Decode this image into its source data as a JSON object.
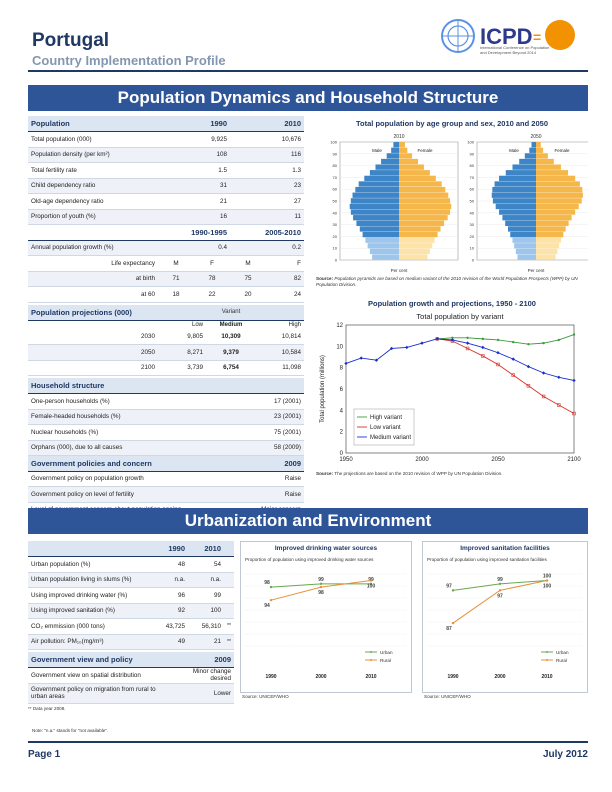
{
  "header": {
    "title": "Portugal",
    "subtitle": "Country Implementation Profile",
    "logo_text": "ICPD",
    "logo_eq": "=",
    "logo_desc": "International Conference on Population and Development Beyond 2014"
  },
  "banner1": "Population Dynamics and Household Structure",
  "banner2": "Urbanization and Environment",
  "population_table": {
    "header": [
      "Population",
      "1990",
      "2010"
    ],
    "rows": [
      [
        "Total population (000)",
        "9,925",
        "10,676"
      ],
      [
        "Population density (per km²)",
        "108",
        "116"
      ],
      [
        "Total fertility rate",
        "1.5",
        "1.3"
      ],
      [
        "Child dependency ratio",
        "31",
        "23"
      ],
      [
        "Old-age dependency ratio",
        "21",
        "27"
      ],
      [
        "Proportion of youth (%)",
        "16",
        "11"
      ]
    ],
    "period_header": [
      "1990-1995",
      "2005-2010"
    ],
    "growth": [
      "Annual population growth (%)",
      "0.4",
      "0.2"
    ],
    "life_header": [
      "Life expectancy",
      "M",
      "F",
      "M",
      "F"
    ],
    "at_birth": [
      "at birth",
      "71",
      "78",
      "75",
      "82"
    ],
    "at_60": [
      "at 60",
      "18",
      "22",
      "20",
      "24"
    ]
  },
  "projections_table": {
    "title": "Population projections (000)",
    "variant_label": "Variant",
    "cols": [
      "Low",
      "Medium",
      "High"
    ],
    "rows": [
      [
        "2030",
        "9,805",
        "10,309",
        "10,814"
      ],
      [
        "2050",
        "8,271",
        "9,379",
        "10,584"
      ],
      [
        "2100",
        "3,739",
        "6,754",
        "11,098"
      ]
    ]
  },
  "household_table": {
    "title": "Household structure",
    "rows": [
      [
        "One-person households (%)",
        "17 (2001)"
      ],
      [
        "Female-headed households (%)",
        "23 (2001)"
      ],
      [
        "Nuclear households (%)",
        "75 (2001)"
      ],
      [
        "Orphans (000), due to all causes",
        "58 (2009)"
      ]
    ]
  },
  "policy_table": {
    "title": "Government policies and concern",
    "year": "2009",
    "rows": [
      [
        "Government policy on population growth",
        "Raise"
      ],
      [
        "Government policy on level of fertility",
        "Raise"
      ],
      [
        "Level of government concern about population ageing",
        "Major concern"
      ]
    ]
  },
  "pyramid": {
    "title": "Total population by age group and sex, 2010 and 2050",
    "years": [
      "2010",
      "2050"
    ],
    "male": "Male",
    "female": "Female",
    "age_ticks": [
      "100",
      "90",
      "80",
      "70",
      "60",
      "50",
      "40",
      "30",
      "20",
      "10",
      "0"
    ],
    "xlabel": "Per cent",
    "source_label": "Source:",
    "source": "Population pyramids are based on medium variant of the 2010 revision of the World Population Prospects (WPP) by UN Population Division."
  },
  "chart_data": [
    {
      "type": "line",
      "title": "Population growth and projections, 1950 - 2100",
      "subtitle": "Total population by variant",
      "ylabel": "Total population (millions)",
      "xlabel": "",
      "ylim": [
        0,
        12
      ],
      "xlim": [
        1950,
        2100
      ],
      "x_ticks": [
        1950,
        2000,
        2050,
        2100
      ],
      "y_ticks": [
        0,
        2,
        4,
        6,
        8,
        10,
        12
      ],
      "series": [
        {
          "name": "High variant",
          "color": "#3a9b3a",
          "x": [
            2010,
            2020,
            2030,
            2040,
            2050,
            2060,
            2070,
            2080,
            2090,
            2100
          ],
          "values": [
            10.7,
            10.8,
            10.8,
            10.7,
            10.6,
            10.4,
            10.2,
            10.3,
            10.6,
            11.1
          ]
        },
        {
          "name": "Low variant",
          "color": "#d9312b",
          "x": [
            2010,
            2020,
            2030,
            2040,
            2050,
            2060,
            2070,
            2080,
            2090,
            2100
          ],
          "values": [
            10.7,
            10.5,
            9.8,
            9.1,
            8.3,
            7.3,
            6.3,
            5.3,
            4.5,
            3.7
          ]
        },
        {
          "name": "Medium variant",
          "color": "#1a2fc9",
          "x": [
            1950,
            1960,
            1970,
            1980,
            1990,
            2000,
            2010,
            2020,
            2030,
            2040,
            2050,
            2060,
            2070,
            2080,
            2090,
            2100
          ],
          "values": [
            8.4,
            8.9,
            8.7,
            9.8,
            9.9,
            10.3,
            10.7,
            10.6,
            10.3,
            9.9,
            9.4,
            8.8,
            8.1,
            7.5,
            7.1,
            6.8
          ]
        }
      ],
      "legend": "bottom-left",
      "source_label": "Source:",
      "source": "The projections are based on the 2010 revision of WPP by UN Population Division."
    },
    {
      "type": "line",
      "title": "Improved drinking water sources",
      "subtitle": "Proportion of population using improved drinking water sources",
      "x": [
        "1990",
        "2000",
        "2010"
      ],
      "series": [
        {
          "name": "Urban",
          "color": "#6aa84f",
          "values": [
            98,
            99,
            99
          ]
        },
        {
          "name": "Rural",
          "color": "#e69138",
          "values": [
            94,
            98,
            100
          ]
        }
      ],
      "source": "Source: UNICEF/WHO"
    },
    {
      "type": "line",
      "title": "Improved sanitation facilities",
      "subtitle": "Proportion of population using improved sanitation facilities",
      "x": [
        "1990",
        "2000",
        "2010"
      ],
      "series": [
        {
          "name": "Urban",
          "color": "#6aa84f",
          "values": [
            97,
            99,
            100
          ]
        },
        {
          "name": "Rural",
          "color": "#e69138",
          "values": [
            87,
            97,
            100
          ]
        }
      ],
      "source": "Source: UNICEF/WHO"
    }
  ],
  "urban_table": {
    "cols": [
      "1990",
      "2010"
    ],
    "rows": [
      [
        "Urban population (%)",
        "48",
        "54",
        ""
      ],
      [
        "Urban population living in slums (%)",
        "n.a.",
        "n.a.",
        ""
      ],
      [
        "Using improved drinking water (%)",
        "96",
        "99",
        ""
      ],
      [
        "Using improved sanitation (%)",
        "92",
        "100",
        ""
      ],
      [
        "CO₂ emmission (000 tons)",
        "43,725",
        "56,310",
        "**"
      ],
      [
        "Air pollution: PM₁₀(mg/m³)",
        "49",
        "21",
        "**"
      ]
    ],
    "view_title": "Government view and policy",
    "view_year": "2009",
    "view_rows": [
      [
        "Government view on spatial distribution",
        "Minor change desired"
      ],
      [
        "Government policy on migration from rural to urban areas",
        "Lower"
      ]
    ],
    "footnote": "** Data year 2008."
  },
  "note": "Note: \"n.a.\" stands for \"not available\".",
  "footer": {
    "page": "Page 1",
    "date": "July 2012"
  }
}
